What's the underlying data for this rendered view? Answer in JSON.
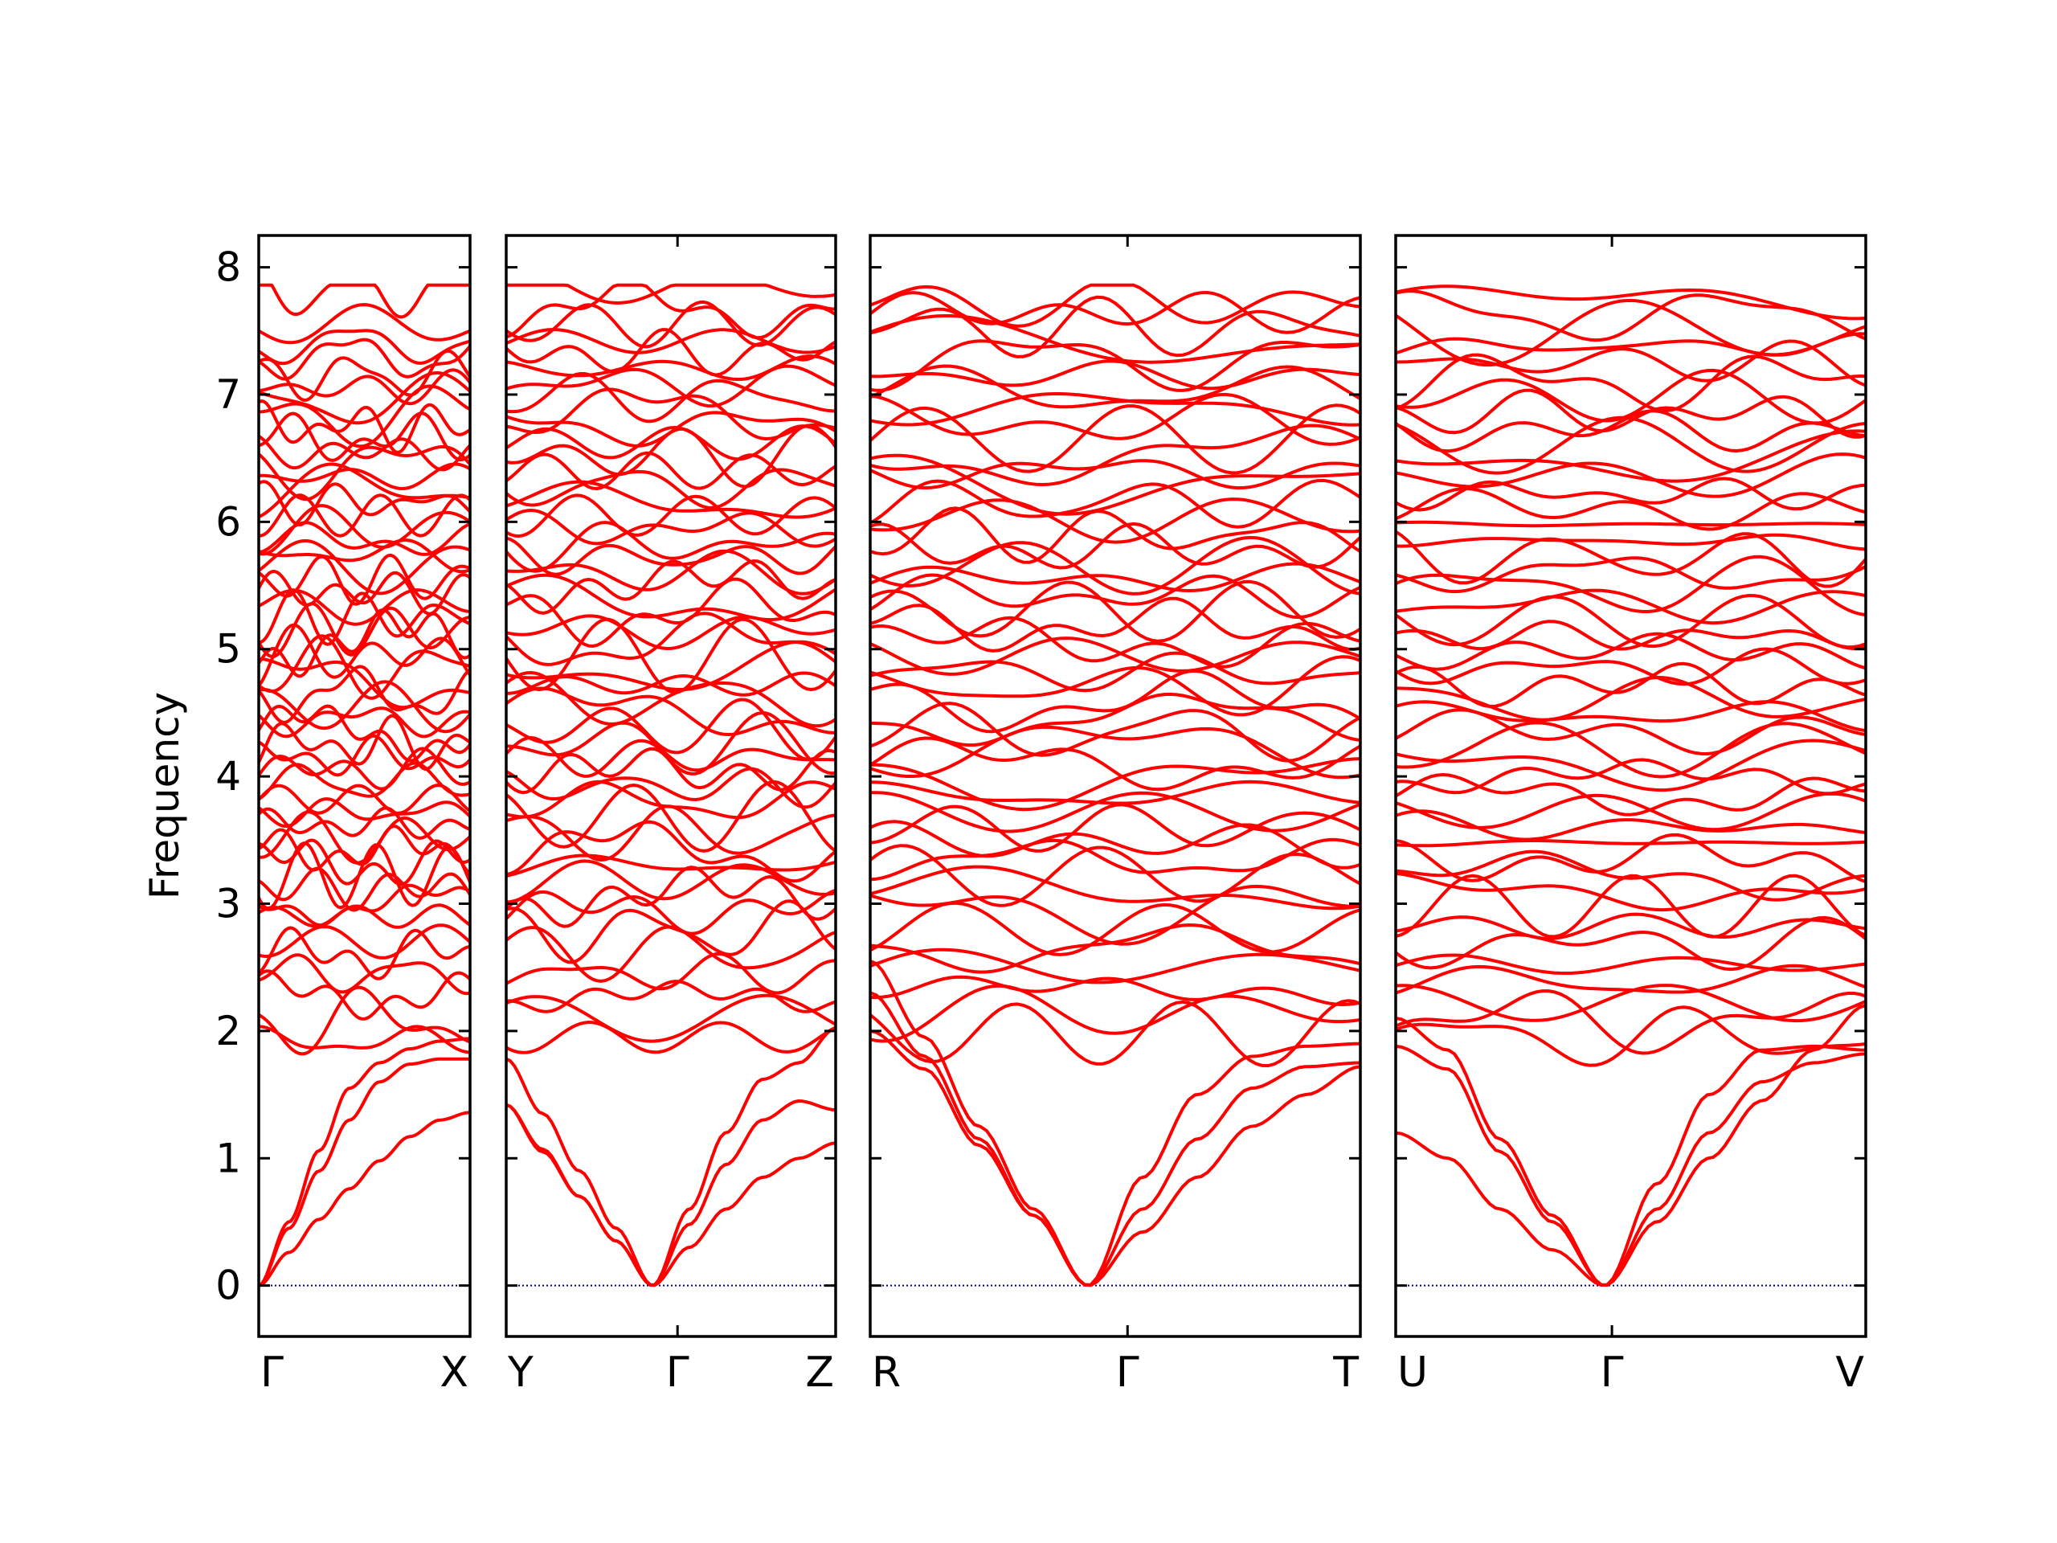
{
  "chart_data": {
    "type": "line",
    "title": "",
    "ylabel": "Frequency",
    "ylim": [
      -0.4,
      8.25
    ],
    "yticks": [
      0,
      1,
      2,
      3,
      4,
      5,
      6,
      7,
      8
    ],
    "zero_line_color": "#00008b",
    "band_color": "#ff0000",
    "grid": false,
    "panels": [
      {
        "path": [
          "Γ",
          "X"
        ],
        "start_label": "Γ",
        "end_label": "X",
        "gamma_position": 0.0,
        "acoustic_branches": [
          {
            "samples": [
              0,
              0.5,
              1.06,
              1.55,
              1.75,
              1.86,
              1.92,
              1.94
            ]
          },
          {
            "samples": [
              0,
              0.45,
              0.9,
              1.3,
              1.6,
              1.74,
              1.78,
              1.78
            ]
          },
          {
            "samples": [
              0,
              0.26,
              0.52,
              0.76,
              0.98,
              1.17,
              1.3,
              1.36
            ]
          }
        ],
        "optical_bands": [
          1.92,
          2.08,
          2.28,
          2.45,
          2.6,
          2.7,
          2.9,
          3.0,
          3.12,
          3.22,
          3.32,
          3.42,
          3.52,
          3.62,
          3.72,
          3.82,
          3.95,
          4.05,
          4.15,
          4.25,
          4.35,
          4.45,
          4.55,
          4.65,
          4.75,
          4.85,
          4.95,
          5.05,
          5.15,
          5.25,
          5.35,
          5.45,
          5.55,
          5.65,
          5.75,
          5.85,
          5.95,
          6.05,
          6.15,
          6.25,
          6.35,
          6.45,
          6.55,
          6.65,
          6.75,
          6.85,
          6.95,
          7.05,
          7.15,
          7.3,
          7.4,
          7.55,
          7.82
        ]
      },
      {
        "path": [
          "Y",
          "Γ",
          "Z"
        ],
        "start_label": "Y",
        "mid_label": "Γ",
        "end_label": "Z",
        "gamma_position": 0.52,
        "acoustic_branches": [
          {
            "samples": [
              1.78,
              1.35,
              0.9,
              0.45,
              0,
              0.6,
              1.2,
              1.62,
              1.75,
              2.02
            ]
          },
          {
            "samples": [
              1.42,
              1.07,
              0.7,
              0.35,
              0,
              0.48,
              0.95,
              1.3,
              1.45,
              1.38
            ]
          },
          {
            "samples": [
              1.42,
              1.05,
              0.7,
              0.35,
              0,
              0.3,
              0.6,
              0.85,
              1.0,
              1.12
            ]
          }
        ],
        "optical_bands": [
          1.95,
          2.1,
          2.25,
          2.45,
          2.62,
          2.78,
          2.95,
          3.05,
          3.18,
          3.3,
          3.42,
          3.55,
          3.68,
          3.8,
          3.92,
          4.05,
          4.15,
          4.25,
          4.38,
          4.5,
          4.6,
          4.72,
          4.82,
          4.95,
          5.05,
          5.15,
          5.28,
          5.38,
          5.5,
          5.6,
          5.72,
          5.82,
          5.95,
          6.05,
          6.15,
          6.28,
          6.4,
          6.52,
          6.62,
          6.75,
          6.85,
          6.98,
          7.08,
          7.2,
          7.32,
          7.42,
          7.55,
          7.68,
          7.85
        ]
      },
      {
        "path": [
          "R",
          "Γ",
          "T"
        ],
        "start_label": "R",
        "mid_label": "Γ",
        "end_label": "T",
        "gamma_position": 0.525,
        "acoustic_branches": [
          {
            "samples": [
              2.0,
              1.7,
              1.1,
              0.55,
              0,
              0.85,
              1.5,
              1.8,
              1.88,
              1.9
            ]
          },
          {
            "samples": [
              2.3,
              1.8,
              1.15,
              0.55,
              0,
              0.6,
              1.15,
              1.55,
              1.72,
              1.75
            ]
          },
          {
            "samples": [
              2.55,
              1.95,
              1.25,
              0.6,
              0,
              0.42,
              0.85,
              1.25,
              1.5,
              1.72
            ]
          }
        ],
        "optical_bands": [
          1.98,
          2.15,
          2.32,
          2.5,
          2.65,
          2.8,
          2.95,
          3.1,
          3.22,
          3.35,
          3.48,
          3.6,
          3.72,
          3.85,
          3.98,
          4.1,
          4.22,
          4.35,
          4.45,
          4.58,
          4.7,
          4.82,
          4.95,
          5.05,
          5.18,
          5.3,
          5.42,
          5.55,
          5.65,
          5.78,
          5.9,
          6.02,
          6.15,
          6.28,
          6.4,
          6.52,
          6.65,
          6.78,
          6.9,
          7.02,
          7.15,
          7.28,
          7.4,
          7.52,
          7.65,
          7.72
        ]
      },
      {
        "path": [
          "U",
          "Γ",
          "V"
        ],
        "start_label": "U",
        "mid_label": "Γ",
        "end_label": "V",
        "gamma_position": 0.46,
        "acoustic_branches": [
          {
            "samples": [
              1.2,
              1.0,
              0.6,
              0.28,
              0,
              0.8,
              1.5,
              1.85,
              1.88,
              1.85
            ]
          },
          {
            "samples": [
              1.88,
              1.7,
              1.05,
              0.5,
              0,
              0.6,
              1.2,
              1.6,
              1.75,
              1.82
            ]
          },
          {
            "samples": [
              2.1,
              1.85,
              1.15,
              0.55,
              0,
              0.5,
              1.0,
              1.45,
              1.85,
              2.2
            ]
          }
        ],
        "optical_bands": [
          1.95,
          2.08,
          2.22,
          2.38,
          2.52,
          2.68,
          2.82,
          2.98,
          3.1,
          3.22,
          3.35,
          3.48,
          3.6,
          3.72,
          3.85,
          3.98,
          4.1,
          4.22,
          4.35,
          4.48,
          4.6,
          4.72,
          4.85,
          4.98,
          5.1,
          5.22,
          5.35,
          5.48,
          5.6,
          5.72,
          5.85,
          5.98,
          6.1,
          6.22,
          6.35,
          6.48,
          6.6,
          6.72,
          6.85,
          6.98,
          7.1,
          7.25,
          7.38,
          7.5,
          7.62,
          7.75
        ]
      }
    ]
  }
}
